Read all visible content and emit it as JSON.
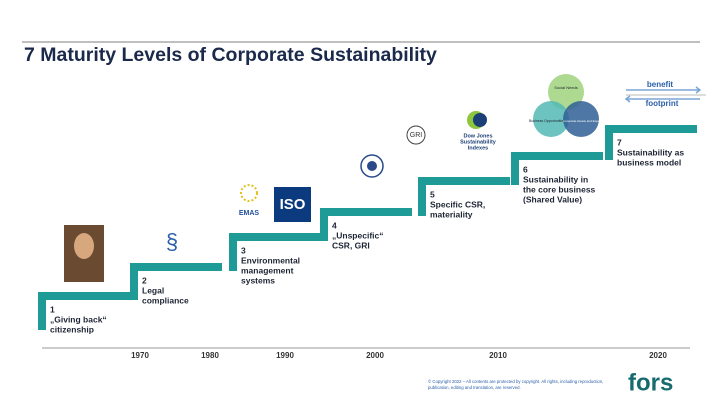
{
  "title": "7 Maturity Levels of Corporate Sustainability",
  "levels": [
    {
      "number": "1",
      "lines": [
        "„Giving back“",
        "citizenship"
      ]
    },
    {
      "number": "2",
      "lines": [
        "Legal",
        "compliance"
      ]
    },
    {
      "number": "3",
      "lines": [
        "Environmental",
        "management",
        "systems"
      ]
    },
    {
      "number": "4",
      "lines": [
        "„Unspecific“",
        "CSR, GRI"
      ]
    },
    {
      "number": "5",
      "lines": [
        "Specific CSR,",
        "materiality"
      ]
    },
    {
      "number": "6",
      "lines": [
        "Sustainability in",
        "the core business",
        "(Shared Value)"
      ]
    },
    {
      "number": "7",
      "lines": [
        "Sustainability as",
        "business model"
      ]
    }
  ],
  "years": [
    "1970",
    "1980",
    "1990",
    "2000",
    "2010",
    "2020"
  ],
  "icons": {
    "paragraph": "§",
    "emas": "EMAS",
    "iso": "ISO",
    "gri": "GRI",
    "dow_jones": [
      "Dow Jones",
      "Sustainability",
      "Indexes"
    ],
    "venn": [
      "Social Needs",
      "Business Opportunities",
      "Corporate Assets and Expertise"
    ],
    "benefit": "benefit",
    "footprint": "footprint"
  },
  "footer": {
    "copyright": [
      "© Copyright 2022 – All contents are protected by copyright. All rights, including reproduction,",
      "publication, editing and translation, are reserved."
    ],
    "logo": "fors"
  }
}
